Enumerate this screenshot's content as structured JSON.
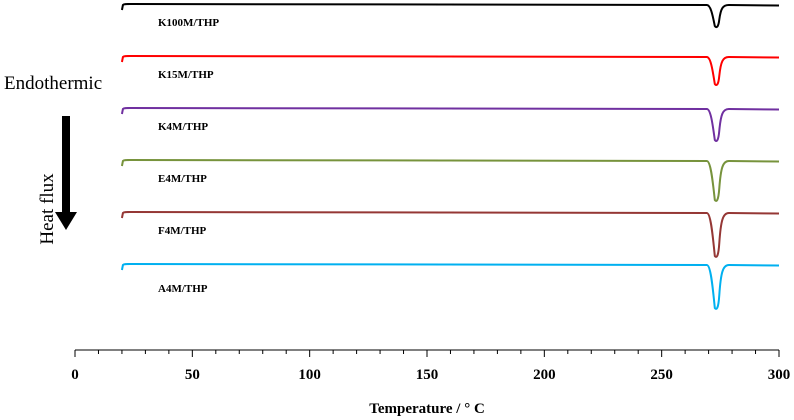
{
  "chart_data": {
    "type": "line",
    "xlabel": "Temperature  / ° C",
    "xlim": [
      0,
      300
    ],
    "x_ticks": [
      "0",
      "50",
      "100",
      "150",
      "200",
      "250",
      "300"
    ],
    "y_axis_visible": false,
    "grid": false,
    "legend": "none",
    "annotations": {
      "endothermic": "Endothermic",
      "heat_flux": "Heat flux"
    },
    "series": [
      {
        "name": "K100M/THP",
        "color": "#000000",
        "baseline_start": 20,
        "peak_temperature": 273.5,
        "peak_depth": 22,
        "end_temperature": 300
      },
      {
        "name": "K15M/THP",
        "color": "#ff0000",
        "baseline_start": 20,
        "peak_temperature": 273.5,
        "peak_depth": 28,
        "end_temperature": 300
      },
      {
        "name": "K4M/THP",
        "color": "#7030a0",
        "baseline_start": 20,
        "peak_temperature": 273.5,
        "peak_depth": 32,
        "end_temperature": 300
      },
      {
        "name": "E4M/THP",
        "color": "#77933c",
        "baseline_start": 20,
        "peak_temperature": 273.5,
        "peak_depth": 40,
        "end_temperature": 300
      },
      {
        "name": "F4M/THP",
        "color": "#953735",
        "baseline_start": 20,
        "peak_temperature": 273.5,
        "peak_depth": 44,
        "end_temperature": 300
      },
      {
        "name": "A4M/THP",
        "color": "#00b0f0",
        "baseline_start": 20,
        "peak_temperature": 273.5,
        "peak_depth": 44,
        "end_temperature": 300
      }
    ]
  }
}
